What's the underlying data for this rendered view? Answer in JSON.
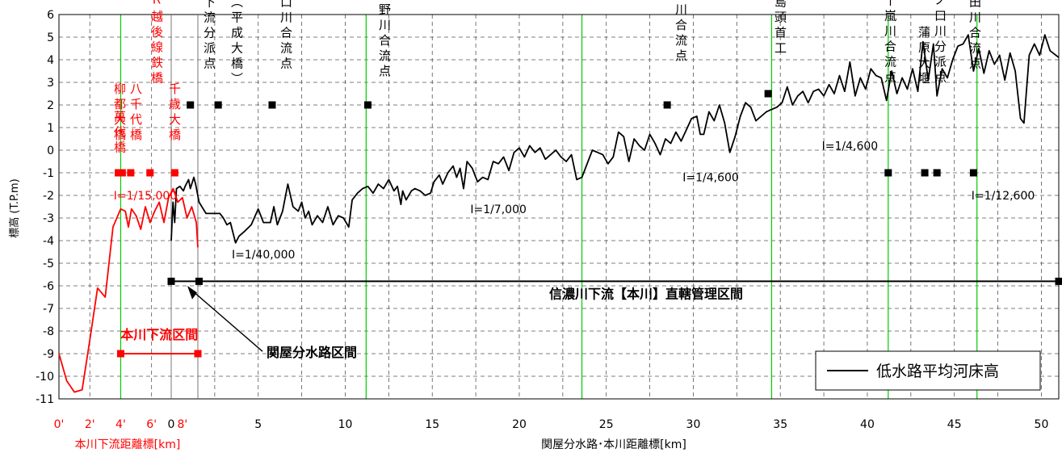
{
  "chart_data": {
    "type": "line",
    "ylabel": "標高 (T.P.m)",
    "xlabel_main": "関屋分水路･本川距離標[km]",
    "xlabel_sub": "本川下流距離標[km]",
    "ylim": [
      -11,
      6
    ],
    "yticks": [
      "6",
      "5",
      "4",
      "3",
      "2",
      "1",
      "0",
      "-1",
      "-2",
      "-3",
      "-4",
      "-5",
      "-6",
      "-7",
      "-8",
      "-9",
      "-10",
      "-11"
    ],
    "sub_axis": {
      "xlim": [
        0,
        9
      ],
      "ticks": [
        {
          "x": 0,
          "label": "0'"
        },
        {
          "x": 2,
          "label": "2'"
        },
        {
          "x": 4,
          "label": "4'"
        },
        {
          "x": 6,
          "label": "6'"
        },
        {
          "x": 8,
          "label": "8'"
        }
      ]
    },
    "main_axis": {
      "xlim": [
        0,
        51
      ],
      "ticks": [
        {
          "x": 0,
          "label": "0"
        },
        {
          "x": 5,
          "label": "5"
        },
        {
          "x": 10,
          "label": "10"
        },
        {
          "x": 15,
          "label": "15"
        },
        {
          "x": 20,
          "label": "20"
        },
        {
          "x": 25,
          "label": "25"
        },
        {
          "x": 30,
          "label": "30"
        },
        {
          "x": 35,
          "label": "35"
        },
        {
          "x": 40,
          "label": "40"
        },
        {
          "x": 45,
          "label": "45"
        },
        {
          "x": 50,
          "label": "50"
        }
      ]
    },
    "series": [
      {
        "name": "低水路平均河床高",
        "axis": "main",
        "color": "#000000",
        "points": [
          [
            0,
            -4
          ],
          [
            0.1,
            -2.3
          ],
          [
            0.2,
            -3.2
          ],
          [
            0.3,
            -1.7
          ],
          [
            0.5,
            -1.6
          ],
          [
            0.7,
            -1.8
          ],
          [
            0.8,
            -1.6
          ],
          [
            1.0,
            -1.3
          ],
          [
            1.1,
            -1.7
          ],
          [
            1.3,
            -1.2
          ],
          [
            1.4,
            -1.5
          ],
          [
            1.6,
            -2.3
          ],
          [
            2.0,
            -2.8
          ],
          [
            2.5,
            -2.8
          ],
          [
            2.8,
            -2.8
          ],
          [
            3.0,
            -3.0
          ],
          [
            3.2,
            -3.3
          ],
          [
            3.4,
            -3.2
          ],
          [
            3.5,
            -3.5
          ],
          [
            3.7,
            -4.1
          ],
          [
            3.9,
            -3.8
          ],
          [
            4.2,
            -3.6
          ],
          [
            4.6,
            -3.3
          ],
          [
            5.0,
            -2.6
          ],
          [
            5.3,
            -3.2
          ],
          [
            5.7,
            -3.2
          ],
          [
            5.9,
            -2.5
          ],
          [
            6.1,
            -3.3
          ],
          [
            6.4,
            -2.7
          ],
          [
            6.7,
            -1.5
          ],
          [
            7.0,
            -2.5
          ],
          [
            7.3,
            -2.7
          ],
          [
            7.5,
            -2.3
          ],
          [
            7.7,
            -3.0
          ],
          [
            7.9,
            -2.7
          ],
          [
            8.1,
            -3.3
          ],
          [
            8.4,
            -2.9
          ],
          [
            8.7,
            -3.2
          ],
          [
            9.0,
            -2.5
          ],
          [
            9.3,
            -3.3
          ],
          [
            9.6,
            -2.9
          ],
          [
            9.9,
            -3.0
          ],
          [
            10.2,
            -3.4
          ],
          [
            10.4,
            -2.2
          ],
          [
            10.7,
            -1.9
          ],
          [
            11.0,
            -1.7
          ],
          [
            11.3,
            -1.6
          ],
          [
            11.6,
            -1.9
          ],
          [
            11.9,
            -1.5
          ],
          [
            12.2,
            -1.7
          ],
          [
            12.5,
            -1.3
          ],
          [
            12.8,
            -1.8
          ],
          [
            13.0,
            -1.6
          ],
          [
            13.2,
            -2.4
          ],
          [
            13.3,
            -1.8
          ],
          [
            13.5,
            -2.2
          ],
          [
            13.8,
            -1.8
          ],
          [
            14.0,
            -1.7
          ],
          [
            14.3,
            -1.8
          ],
          [
            14.6,
            -2.0
          ],
          [
            14.9,
            -1.9
          ],
          [
            15.1,
            -1.4
          ],
          [
            15.4,
            -1.1
          ],
          [
            15.6,
            -1.5
          ],
          [
            15.9,
            -1.0
          ],
          [
            16.2,
            -0.7
          ],
          [
            16.4,
            -1.2
          ],
          [
            16.6,
            -0.8
          ],
          [
            16.8,
            -1.7
          ],
          [
            17.0,
            -0.5
          ],
          [
            17.3,
            -0.8
          ],
          [
            17.6,
            -1.4
          ],
          [
            17.9,
            -1.2
          ],
          [
            18.2,
            -1.3
          ],
          [
            18.5,
            -0.5
          ],
          [
            18.8,
            -0.6
          ],
          [
            19.1,
            -0.3
          ],
          [
            19.4,
            -0.9
          ],
          [
            19.7,
            -0.1
          ],
          [
            20.0,
            0.1
          ],
          [
            20.3,
            -0.3
          ],
          [
            20.6,
            0.2
          ],
          [
            20.9,
            -0.1
          ],
          [
            21.2,
            0.1
          ],
          [
            21.5,
            -0.4
          ],
          [
            21.8,
            -0.2
          ],
          [
            22.1,
            0.0
          ],
          [
            22.4,
            -0.3
          ],
          [
            22.7,
            -0.5
          ],
          [
            23.0,
            -0.2
          ],
          [
            23.3,
            -1.3
          ],
          [
            23.6,
            -1.2
          ],
          [
            23.9,
            -0.6
          ],
          [
            24.2,
            0.0
          ],
          [
            24.5,
            -0.1
          ],
          [
            24.8,
            -0.2
          ],
          [
            25.1,
            -0.6
          ],
          [
            25.4,
            -0.3
          ],
          [
            25.7,
            0.8
          ],
          [
            26.0,
            0.6
          ],
          [
            26.3,
            -0.5
          ],
          [
            26.6,
            0.5
          ],
          [
            26.9,
            0.2
          ],
          [
            27.2,
            0.0
          ],
          [
            27.5,
            0.7
          ],
          [
            27.8,
            0.3
          ],
          [
            28.1,
            -0.2
          ],
          [
            28.4,
            0.5
          ],
          [
            28.7,
            0.3
          ],
          [
            29.0,
            0.8
          ],
          [
            29.3,
            0.4
          ],
          [
            29.6,
            0.9
          ],
          [
            29.9,
            1.4
          ],
          [
            30.2,
            1.5
          ],
          [
            30.4,
            0.7
          ],
          [
            30.6,
            0.7
          ],
          [
            30.9,
            1.7
          ],
          [
            31.2,
            1.3
          ],
          [
            31.5,
            2.0
          ],
          [
            31.8,
            1.2
          ],
          [
            32.1,
            -0.1
          ],
          [
            32.4,
            0.6
          ],
          [
            32.7,
            1.5
          ],
          [
            33.0,
            2.1
          ],
          [
            33.3,
            1.9
          ],
          [
            33.6,
            1.3
          ],
          [
            33.9,
            1.5
          ],
          [
            34.2,
            1.7
          ],
          [
            34.5,
            1.8
          ],
          [
            34.8,
            1.9
          ],
          [
            35.1,
            2.1
          ],
          [
            35.4,
            2.8
          ],
          [
            35.7,
            2.0
          ],
          [
            36.0,
            2.4
          ],
          [
            36.3,
            2.6
          ],
          [
            36.6,
            2.1
          ],
          [
            36.9,
            2.6
          ],
          [
            37.2,
            2.7
          ],
          [
            37.5,
            2.4
          ],
          [
            37.8,
            2.9
          ],
          [
            38.1,
            2.5
          ],
          [
            38.4,
            3.3
          ],
          [
            38.7,
            2.6
          ],
          [
            39.0,
            3.9
          ],
          [
            39.3,
            2.4
          ],
          [
            39.6,
            3.2
          ],
          [
            39.9,
            2.7
          ],
          [
            40.2,
            3.6
          ],
          [
            40.5,
            3.3
          ],
          [
            40.8,
            3.2
          ],
          [
            41.1,
            2.2
          ],
          [
            41.4,
            3.5
          ],
          [
            41.7,
            2.5
          ],
          [
            42.0,
            3.2
          ],
          [
            42.3,
            2.7
          ],
          [
            42.6,
            3.6
          ],
          [
            42.9,
            2.6
          ],
          [
            43.2,
            4.8
          ],
          [
            43.5,
            3.1
          ],
          [
            43.8,
            4.7
          ],
          [
            44.0,
            2.4
          ],
          [
            44.3,
            3.6
          ],
          [
            44.6,
            3.2
          ],
          [
            44.9,
            4.0
          ],
          [
            45.2,
            4.6
          ],
          [
            45.5,
            4.7
          ],
          [
            45.8,
            5.1
          ],
          [
            46.1,
            3.5
          ],
          [
            46.4,
            4.5
          ],
          [
            46.7,
            3.4
          ],
          [
            47.0,
            4.4
          ],
          [
            47.3,
            3.8
          ],
          [
            47.6,
            4.2
          ],
          [
            47.9,
            3.1
          ],
          [
            48.2,
            4.3
          ],
          [
            48.5,
            3.5
          ],
          [
            48.8,
            1.4
          ],
          [
            49.0,
            1.2
          ],
          [
            49.3,
            4.2
          ],
          [
            49.6,
            4.7
          ],
          [
            49.9,
            4.2
          ],
          [
            50.2,
            5.1
          ],
          [
            50.5,
            4.4
          ],
          [
            51.0,
            4.1
          ]
        ]
      },
      {
        "name": "",
        "axis": "sub",
        "color": "#ff0000",
        "points": [
          [
            0,
            -9
          ],
          [
            0.5,
            -10.2
          ],
          [
            1.0,
            -10.7
          ],
          [
            1.5,
            -10.6
          ],
          [
            2.0,
            -8.4
          ],
          [
            2.5,
            -6.1
          ],
          [
            3.0,
            -6.5
          ],
          [
            3.5,
            -3.4
          ],
          [
            4.0,
            -2.6
          ],
          [
            4.3,
            -2.7
          ],
          [
            4.5,
            -3.4
          ],
          [
            4.7,
            -2.6
          ],
          [
            5.0,
            -2.9
          ],
          [
            5.3,
            -3.5
          ],
          [
            5.6,
            -2.5
          ],
          [
            5.9,
            -3.2
          ],
          [
            6.2,
            -2.7
          ],
          [
            6.5,
            -2.3
          ],
          [
            6.8,
            -3.2
          ],
          [
            7.1,
            -2.1
          ],
          [
            7.4,
            -1.7
          ],
          [
            7.7,
            -2.3
          ],
          [
            8.0,
            -2.1
          ],
          [
            8.3,
            -3.0
          ],
          [
            8.6,
            -2.5
          ],
          [
            8.9,
            -3.2
          ],
          [
            9.0,
            -4.3
          ]
        ]
      }
    ],
    "vertical_lines": [
      {
        "axis": "sub",
        "x": 4,
        "color": "#00cc00"
      },
      {
        "axis": "main",
        "x": 11.2,
        "color": "#00cc00"
      },
      {
        "axis": "main",
        "x": 23.6,
        "color": "#00cc00"
      },
      {
        "axis": "main",
        "x": 34.5,
        "color": "#00cc00"
      },
      {
        "axis": "main",
        "x": 41.2,
        "color": "#00cc00"
      },
      {
        "axis": "main",
        "x": 46.3,
        "color": "#00cc00"
      }
    ],
    "sections": [
      {
        "label": "本川下流区間",
        "axis": "sub",
        "x1": 4,
        "x2": 9,
        "y": -9,
        "color": "#ff0000"
      },
      {
        "label": "信濃川下流【本川】直轄管理区間",
        "axis": "main",
        "x1": 0,
        "x2": 51,
        "y": -5.8,
        "color": "#000000"
      },
      {
        "label": "関屋分水路区間",
        "axis": "main",
        "x1": 0,
        "x2": 1.6,
        "y": -5.8,
        "color": "#000000"
      }
    ],
    "landmarks": [
      {
        "label": "柳都大橋",
        "axis": "sub",
        "x": 3.85,
        "y": -1,
        "color": "#ff0000"
      },
      {
        "label": "八千代橋",
        "axis": "sub",
        "x": 4.65,
        "y": -1,
        "color": "#ff0000"
      },
      {
        "label": "JR越後線鉄橋",
        "axis": "sub",
        "x": 5.9,
        "y": -1,
        "color": "#ff0000"
      },
      {
        "label": "萬代橋",
        "axis": "sub",
        "x": 4.1,
        "y": -1,
        "color": "#ff0000"
      },
      {
        "label": "千歳大橋",
        "axis": "sub",
        "x": 7.5,
        "y": -1,
        "color": "#ff0000"
      },
      {
        "label": "本川下流分派点",
        "axis": "main",
        "x": 1.1,
        "y": 2,
        "color": "#000000"
      },
      {
        "label": "帝石橋（平成大橋）",
        "axis": "main",
        "x": 2.7,
        "y": 2,
        "color": "#000000"
      },
      {
        "label": "中ノ口川合流点",
        "axis": "main",
        "x": 5.8,
        "y": 2,
        "color": "#000000"
      },
      {
        "label": "小阿賀野川合流点",
        "axis": "main",
        "x": 11.3,
        "y": 2,
        "color": "#000000"
      },
      {
        "label": "加茂川合流点",
        "axis": "main",
        "x": 28.5,
        "y": 2,
        "color": "#000000"
      },
      {
        "label": "大島頭首工",
        "axis": "main",
        "x": 34.3,
        "y": 2.5,
        "color": "#000000"
      },
      {
        "label": "五十嵐川合流点",
        "axis": "main",
        "x": 41.2,
        "y": -1,
        "color": "#000000"
      },
      {
        "label": "中ノ口川分派点",
        "axis": "main",
        "x": 43.3,
        "y": -1,
        "color": "#000000"
      },
      {
        "label": "蒲原大堰",
        "axis": "main",
        "x": 44.0,
        "y": -1,
        "color": "#000000"
      },
      {
        "label": "刈谷田川合流点",
        "axis": "main",
        "x": 46.1,
        "y": -1,
        "color": "#000000"
      }
    ],
    "section_end_markers": [
      {
        "axis": "main",
        "x": 0,
        "y": -5.8
      },
      {
        "axis": "main",
        "x": 1.6,
        "y": -5.8
      },
      {
        "axis": "main",
        "x": 51,
        "y": -5.8
      },
      {
        "axis": "sub",
        "x": 4,
        "y": -9
      },
      {
        "axis": "sub",
        "x": 9,
        "y": -9
      }
    ],
    "slope_labels": [
      {
        "text": "I=1/15,000",
        "axis": "sub",
        "x": 5.6,
        "y": -2.0,
        "color": "#ff0000"
      },
      {
        "text": "I=1/40,000",
        "axis": "main",
        "x": 5.3,
        "y": -4.6,
        "color": "#000000"
      },
      {
        "text": "I=1/7,000",
        "axis": "main",
        "x": 18.8,
        "y": -2.6,
        "color": "#000000"
      },
      {
        "text": "I=1/4,600",
        "axis": "main",
        "x": 31.0,
        "y": -1.2,
        "color": "#000000"
      },
      {
        "text": "I=1/4,600",
        "axis": "main",
        "x": 39.0,
        "y": 0.2,
        "color": "#000000"
      },
      {
        "text": "I=1/12,600",
        "axis": "main",
        "x": 47.8,
        "y": -2.0,
        "color": "#000000"
      }
    ],
    "legend": {
      "position": "bottom-right",
      "label": "低水路平均河床高"
    },
    "grid": true
  }
}
